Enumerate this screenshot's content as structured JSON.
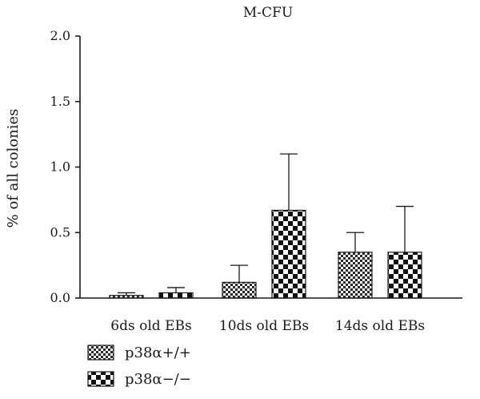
{
  "chart_data": {
    "type": "bar",
    "title": "M-CFU",
    "xlabel": "",
    "ylabel": "% of all colonies",
    "ylim": [
      0,
      2.0
    ],
    "yticks": [
      "0.0",
      "0.5",
      "1.0",
      "1.5",
      "2.0"
    ],
    "categories": [
      "6ds old EBs",
      "10ds old EBs",
      "14ds old EBs"
    ],
    "series": [
      {
        "name": "p38α+/+",
        "values": [
          0.02,
          0.12,
          0.35
        ],
        "errors": [
          0.02,
          0.13,
          0.15
        ],
        "pattern": "fine-check"
      },
      {
        "name": "p38α−/−",
        "values": [
          0.04,
          0.67,
          0.35
        ],
        "errors": [
          0.04,
          0.43,
          0.35
        ],
        "pattern": "coarse-check"
      }
    ],
    "legend_position": "bottom-left",
    "grid": false
  }
}
